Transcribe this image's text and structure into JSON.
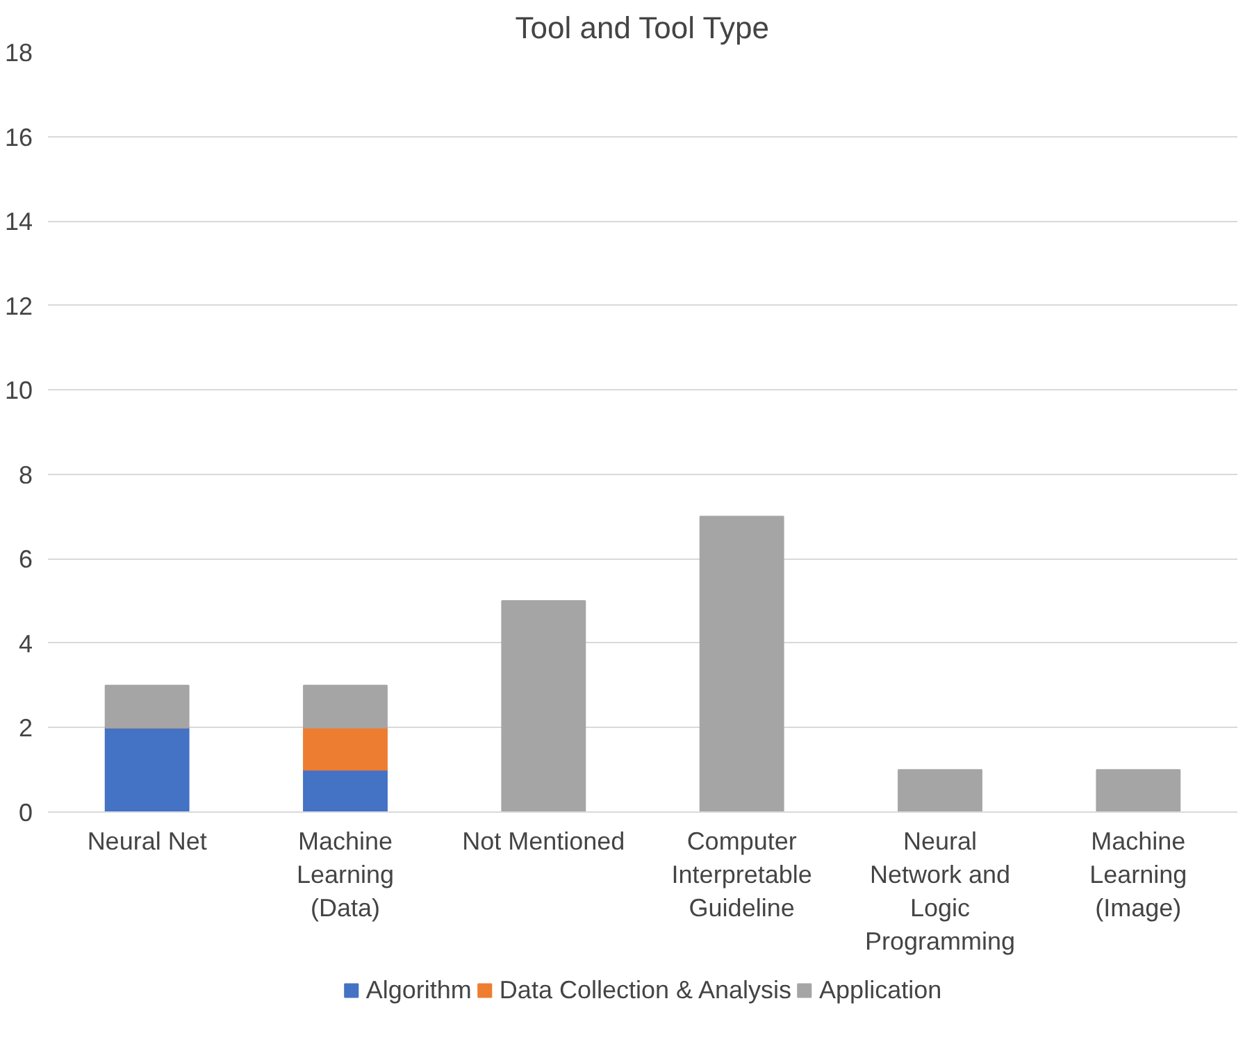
{
  "chart_data": {
    "type": "bar",
    "title": "Tool and Tool Type",
    "stacked": true,
    "categories": [
      "Neural Net",
      "Machine Learning (Data)",
      "Not Mentioned",
      "Computer Interpretable Guideline",
      "Neural Network and Logic Programming",
      "Machine Learning (Image)"
    ],
    "series": [
      {
        "name": "Algorithm",
        "color": "#4472c4",
        "values": [
          2,
          1,
          0,
          0,
          0,
          0
        ]
      },
      {
        "name": "Data Collection & Analysis",
        "color": "#ed7d31",
        "values": [
          0,
          1,
          0,
          0,
          0,
          0
        ]
      },
      {
        "name": "Application",
        "color": "#a5a5a5",
        "values": [
          1,
          1,
          5,
          7,
          1,
          1
        ]
      }
    ],
    "ylim": [
      0,
      18
    ],
    "yticks": [
      0,
      2,
      4,
      6,
      8,
      10,
      12,
      14,
      16,
      18
    ],
    "grid": "y",
    "legend": "bottom"
  }
}
